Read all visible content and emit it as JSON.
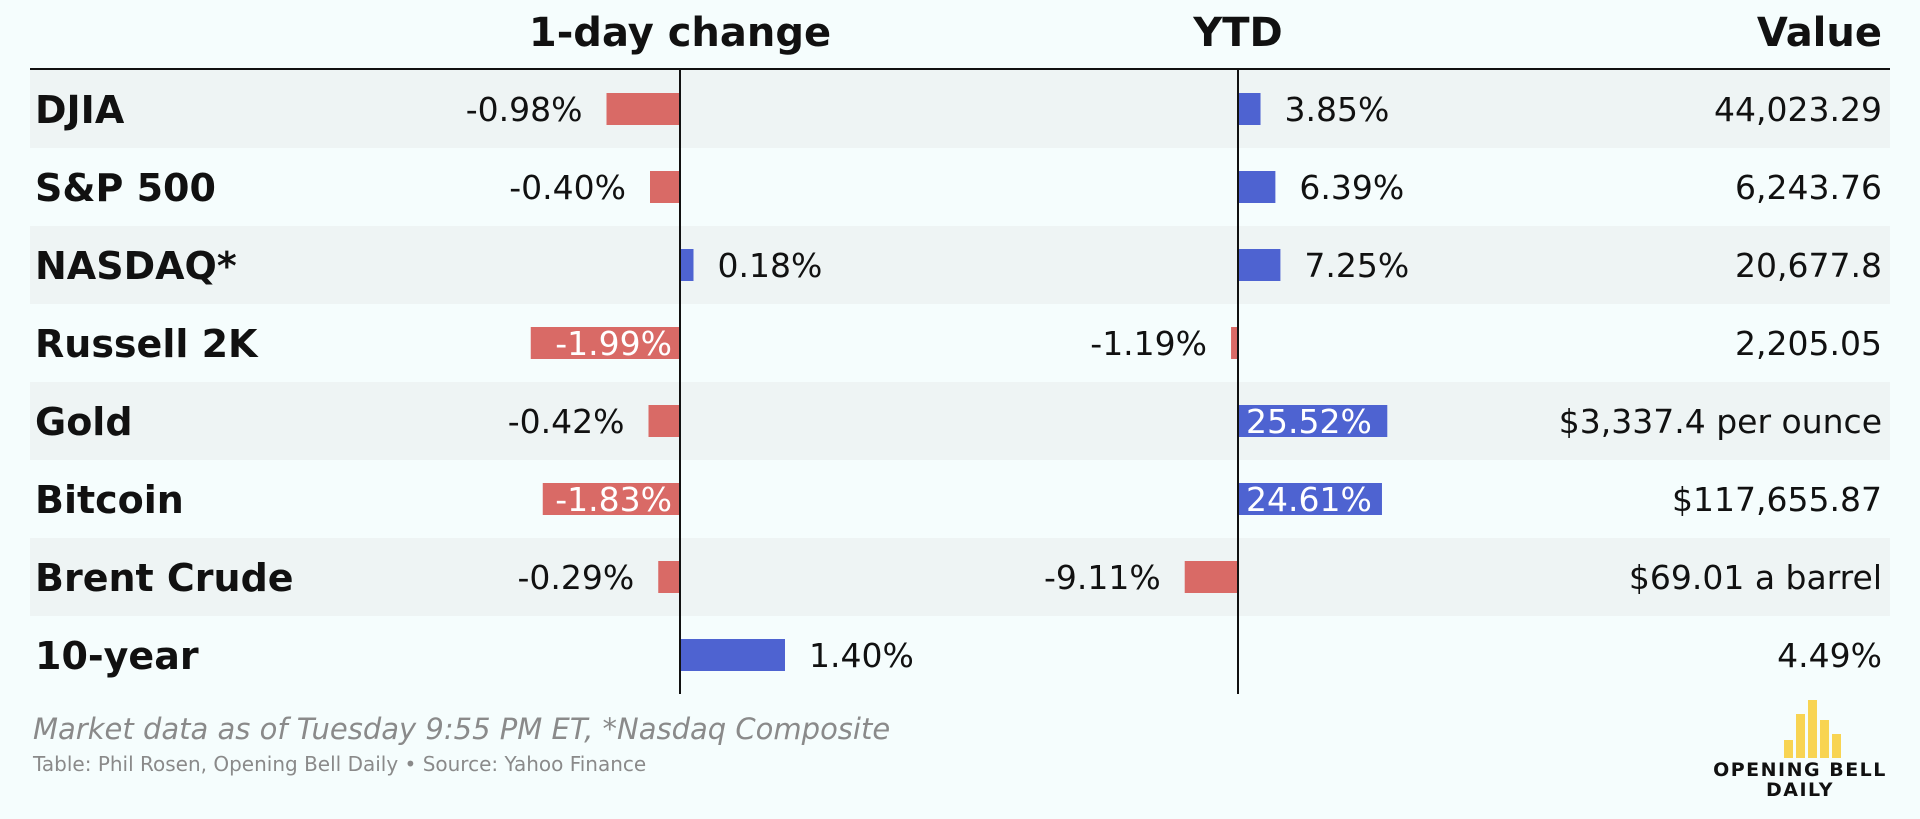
{
  "colors": {
    "negative": "#d96a66",
    "positive": "#4e63d1",
    "row_band": "#eef4f4",
    "background": "#f5fdfd",
    "muted": "#8a8a8a",
    "logo_yellow": "#f8d452"
  },
  "chart_data": {
    "type": "table",
    "columns": [
      "1-day change",
      "YTD",
      "Value"
    ],
    "rows": [
      {
        "label": "DJIA",
        "day_change": -0.98,
        "day_change_text": "-0.98%",
        "ytd": 3.85,
        "ytd_text": "3.85%",
        "value": "44,023.29"
      },
      {
        "label": "S&P 500",
        "day_change": -0.4,
        "day_change_text": "-0.40%",
        "ytd": 6.39,
        "ytd_text": "6.39%",
        "value": "6,243.76"
      },
      {
        "label": "NASDAQ*",
        "day_change": 0.18,
        "day_change_text": "0.18%",
        "ytd": 7.25,
        "ytd_text": "7.25%",
        "value": "20,677.8"
      },
      {
        "label": "Russell 2K",
        "day_change": -1.99,
        "day_change_text": "-1.99%",
        "ytd": -1.19,
        "ytd_text": "-1.19%",
        "value": "2,205.05"
      },
      {
        "label": "Gold",
        "day_change": -0.42,
        "day_change_text": "-0.42%",
        "ytd": 25.52,
        "ytd_text": "25.52%",
        "value": "$3,337.4 per ounce"
      },
      {
        "label": "Bitcoin",
        "day_change": -1.83,
        "day_change_text": "-1.83%",
        "ytd": 24.61,
        "ytd_text": "24.61%",
        "value": "$117,655.87"
      },
      {
        "label": "Brent Crude",
        "day_change": -0.29,
        "day_change_text": "-0.29%",
        "ytd": -9.11,
        "ytd_text": "-9.11%",
        "value": "$69.01 a barrel"
      },
      {
        "label": "10-year",
        "day_change": 1.4,
        "day_change_text": "1.40%",
        "ytd": null,
        "ytd_text": "",
        "value": "4.49%"
      }
    ]
  },
  "footer": {
    "note": "Market data as of Tuesday 9:55 PM ET, *Nasdaq Composite",
    "credit": "Table: Phil Rosen, Opening Bell Daily • Source: Yahoo Finance"
  },
  "logo": {
    "line1": "OPENING BELL",
    "line2": "DAILY"
  }
}
